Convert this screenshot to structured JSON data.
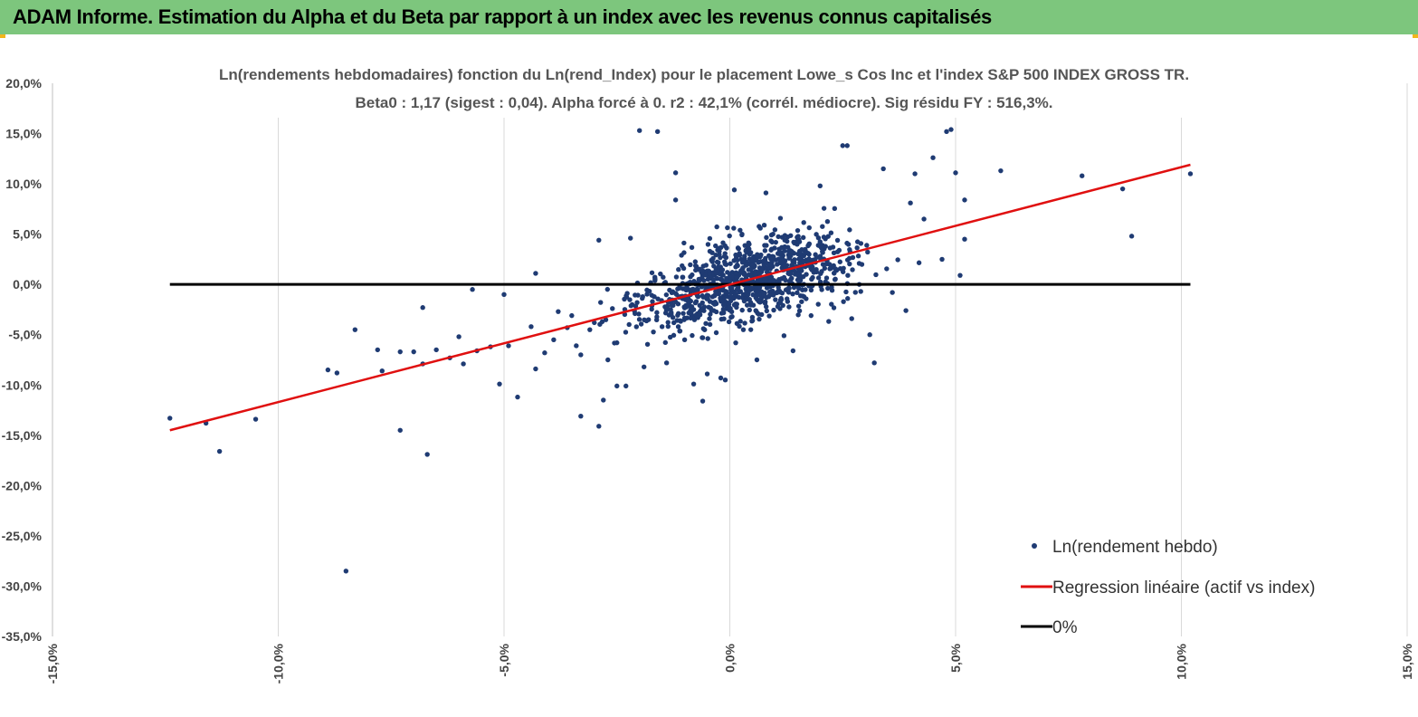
{
  "banner": {
    "title": "ADAM Informe. Estimation du Alpha et du Beta par rapport à un index avec les revenus connus capitalisés"
  },
  "colors": {
    "banner": "#7dc67d",
    "points": "#1f3b73",
    "regression": "#e01010",
    "zero": "#000000"
  },
  "chart_data": {
    "type": "scatter",
    "title": "Ln(rendements hebdomadaires) fonction du Ln(rend_Index) pour le placement Lowe_s Cos Inc et l'index S&P 500 INDEX GROSS TR.",
    "subtitle": "Beta0 : 1,17 (sigest : 0,04). Alpha forcé à 0. r2 : 42,1% (corrél. médiocre). Sig résidu FY : 516,3%.",
    "xlim": [
      -15,
      15
    ],
    "ylim": [
      -35,
      20
    ],
    "x_ticks": [
      "-15,0%",
      "-10,0%",
      "-5,0%",
      "0,0%",
      "5,0%",
      "10,0%",
      "15,0%"
    ],
    "y_ticks": [
      "20,0%",
      "15,0%",
      "10,0%",
      "5,0%",
      "0,0%",
      "-5,0%",
      "-10,0%",
      "-15,0%",
      "-20,0%",
      "-25,0%",
      "-30,0%",
      "-35,0%"
    ],
    "grid": "vertical",
    "legend_position": "bottom-right",
    "series": [
      {
        "name": "Ln(rendement hebdo)",
        "kind": "scatter",
        "points": [
          [
            -12.4,
            -13.3
          ],
          [
            -11.6,
            -13.8
          ],
          [
            -11.3,
            -16.6
          ],
          [
            -10.5,
            -13.4
          ],
          [
            -8.9,
            -8.5
          ],
          [
            -8.7,
            -8.8
          ],
          [
            -8.5,
            -28.5
          ],
          [
            -8.3,
            -4.5
          ],
          [
            -7.8,
            -6.5
          ],
          [
            -7.7,
            -8.6
          ],
          [
            -7.3,
            -6.7
          ],
          [
            -7.3,
            -14.5
          ],
          [
            -7.0,
            -6.7
          ],
          [
            -6.8,
            -2.3
          ],
          [
            -6.8,
            -7.9
          ],
          [
            -6.7,
            -16.9
          ],
          [
            -6.5,
            -6.5
          ],
          [
            -6.2,
            -7.3
          ],
          [
            -6.0,
            -5.2
          ],
          [
            -5.9,
            -7.9
          ],
          [
            -5.7,
            -0.5
          ],
          [
            -5.6,
            -6.6
          ],
          [
            -5.3,
            -6.2
          ],
          [
            -5.1,
            -9.9
          ],
          [
            -5.0,
            -1.0
          ],
          [
            -4.9,
            -6.1
          ],
          [
            -4.7,
            -11.2
          ],
          [
            -4.4,
            -4.2
          ],
          [
            -4.3,
            -8.4
          ],
          [
            -4.3,
            1.1
          ],
          [
            -4.1,
            -6.8
          ],
          [
            -3.9,
            -5.5
          ],
          [
            -3.8,
            -2.7
          ],
          [
            -3.6,
            -4.3
          ],
          [
            -3.5,
            -3.1
          ],
          [
            -3.4,
            -6.1
          ],
          [
            -3.3,
            -13.1
          ],
          [
            -3.3,
            -7.0
          ],
          [
            -3.1,
            -4.5
          ],
          [
            -3.0,
            -3.8
          ],
          [
            -2.9,
            -14.1
          ],
          [
            -2.9,
            4.4
          ],
          [
            -2.8,
            -11.5
          ],
          [
            -2.7,
            -7.5
          ],
          [
            -2.6,
            -2.4
          ],
          [
            -2.5,
            -5.8
          ],
          [
            -2.5,
            -10.1
          ],
          [
            -2.3,
            -10.1
          ],
          [
            -2.2,
            4.6
          ],
          [
            -2.1,
            -2.9
          ],
          [
            -2.0,
            15.3
          ],
          [
            -1.9,
            -8.2
          ],
          [
            -1.8,
            -3.5
          ],
          [
            -1.6,
            15.2
          ],
          [
            -1.5,
            -4.2
          ],
          [
            -1.4,
            -7.8
          ],
          [
            -1.3,
            -1.8
          ],
          [
            -1.2,
            11.1
          ],
          [
            -1.2,
            8.4
          ],
          [
            -1.1,
            -3.6
          ],
          [
            -1.0,
            -5.5
          ],
          [
            -0.9,
            -2.1
          ],
          [
            -0.8,
            -9.9
          ],
          [
            -0.7,
            -2.9
          ],
          [
            -0.6,
            -11.6
          ],
          [
            -0.6,
            -5.3
          ],
          [
            -0.5,
            -8.9
          ],
          [
            -0.3,
            -4.8
          ],
          [
            -0.2,
            -9.3
          ],
          [
            -0.1,
            -9.5
          ],
          [
            0.1,
            9.4
          ],
          [
            0.3,
            -4.5
          ],
          [
            0.6,
            -7.5
          ],
          [
            0.8,
            9.1
          ],
          [
            1.2,
            -5.1
          ],
          [
            1.4,
            -6.6
          ],
          [
            1.8,
            -3.1
          ],
          [
            2.0,
            9.8
          ],
          [
            2.5,
            13.8
          ],
          [
            2.6,
            13.8
          ],
          [
            2.7,
            -3.4
          ],
          [
            2.9,
            -0.7
          ],
          [
            3.1,
            -5.0
          ],
          [
            3.2,
            -7.8
          ],
          [
            3.4,
            11.5
          ],
          [
            3.6,
            -0.8
          ],
          [
            3.9,
            -2.6
          ],
          [
            4.0,
            8.1
          ],
          [
            4.1,
            11.0
          ],
          [
            4.3,
            6.5
          ],
          [
            4.5,
            12.6
          ],
          [
            4.7,
            2.5
          ],
          [
            4.8,
            15.2
          ],
          [
            4.9,
            15.4
          ],
          [
            5.0,
            11.1
          ],
          [
            5.1,
            0.9
          ],
          [
            5.2,
            4.5
          ],
          [
            5.2,
            8.4
          ],
          [
            6.0,
            11.3
          ],
          [
            7.8,
            10.8
          ],
          [
            8.7,
            9.5
          ],
          [
            8.9,
            4.8
          ],
          [
            10.2,
            11.0
          ]
        ],
        "cluster": {
          "center": [
            0.4,
            0.5
          ],
          "spread_x": 1.7,
          "spread_y": 2.8,
          "slope": 1.17,
          "count": 980
        }
      },
      {
        "name": "Regression linéaire (actif vs index)",
        "kind": "line",
        "points": [
          [
            -12.4,
            -14.5
          ],
          [
            10.2,
            11.9
          ]
        ]
      },
      {
        "name": "0%",
        "kind": "line",
        "points": [
          [
            -12.4,
            0
          ],
          [
            10.2,
            0
          ]
        ]
      }
    ]
  }
}
